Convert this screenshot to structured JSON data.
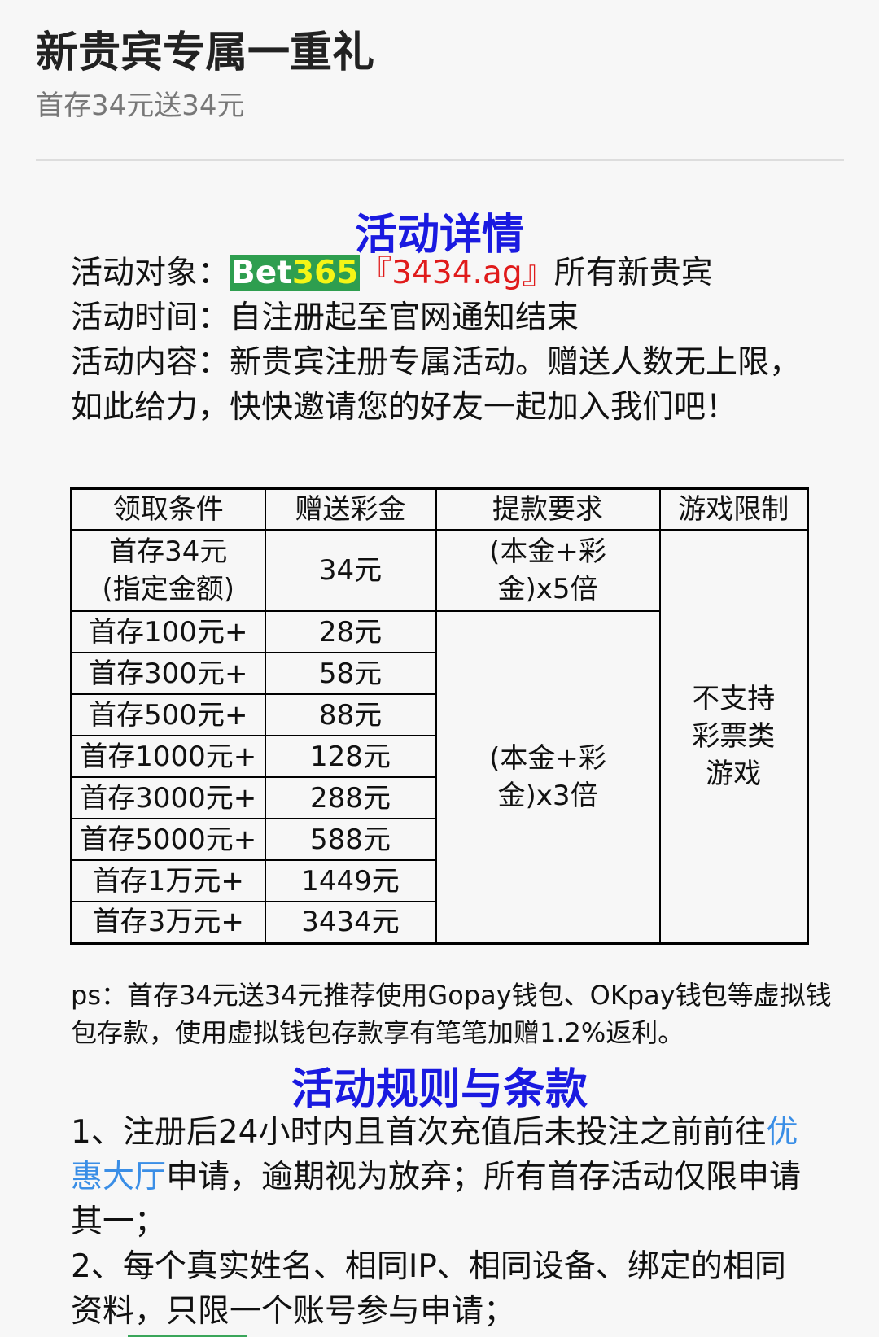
{
  "header": {
    "title": "新贵宾专属一重礼",
    "subtitle": "首存34元送34元"
  },
  "details": {
    "heading": "活动详情",
    "target_label": "活动对象：",
    "brand_text": "Bet",
    "brand_num": "365",
    "domain": "『3434.ag』",
    "target_rest": "所有新贵宾",
    "time": "活动时间：自注册起至官网通知结束",
    "content": "活动内容：新贵宾注册专属活动。赠送人数无上限，如此给力，快快邀请您的好友一起加入我们吧！"
  },
  "table": {
    "headers": [
      "领取条件",
      "赠送彩金",
      "提款要求",
      "游戏限制"
    ],
    "first_row": {
      "condition": "首存34元(指定金额)",
      "bonus": "34元",
      "withdraw": "(本金+彩金)x5倍"
    },
    "rows": [
      {
        "condition": "首存100元+",
        "bonus": "28元"
      },
      {
        "condition": "首存300元+",
        "bonus": "58元"
      },
      {
        "condition": "首存500元+",
        "bonus": "88元"
      },
      {
        "condition": "首存1000元+",
        "bonus": "128元"
      },
      {
        "condition": "首存3000元+",
        "bonus": "288元"
      },
      {
        "condition": "首存5000元+",
        "bonus": "588元"
      },
      {
        "condition": "首存1万元+",
        "bonus": "1449元"
      },
      {
        "condition": "首存3万元+",
        "bonus": "3434元"
      }
    ],
    "withdraw_other": "(本金+彩金)x3倍",
    "game_limit": "不支持彩票类游戏"
  },
  "ps": "ps：首存34元送34元推荐使用Gopay钱包、OKpay钱包等虚拟钱包存款，使用虚拟钱包存款享有笔笔加赠1.2%返利。",
  "rules": {
    "heading": "活动规则与条款",
    "rule1_a": "1、注册后24小时内且首次充值后未投注之前前往",
    "rule1_link": "优惠大厅",
    "rule1_b": "申请，逾期视为放弃；所有首存活动仅限申请其一；",
    "rule2": "2、每个真实姓名、相同IP、相同设备、绑定的相同资料，只限一个账号参与申请；"
  },
  "colors": {
    "heading_blue": "#1a1ae0",
    "brand_green": "#2e9e4f",
    "brand_yellow": "#f5f516",
    "domain_red": "#e01b1b",
    "link_blue": "#3a8ee6"
  }
}
